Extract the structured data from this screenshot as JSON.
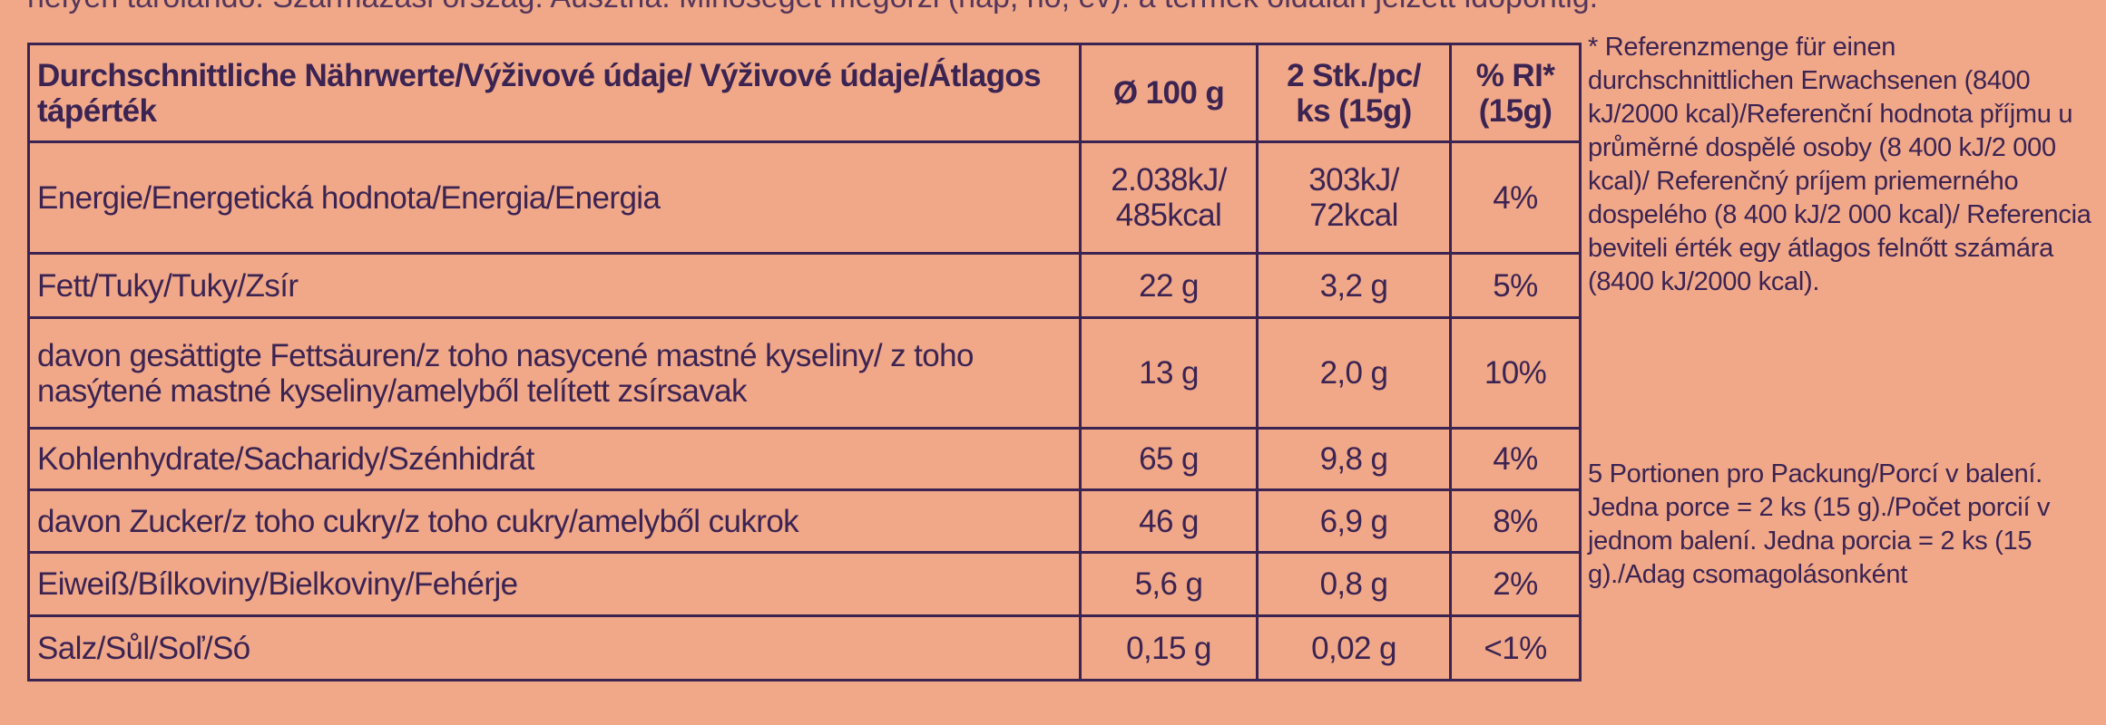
{
  "top_text": "helyen tárolandó. Származási ország: Ausztria. Minőségét megőrzi (nap, hó, év): a termék oldalán jelzett időpontig.",
  "table": {
    "headers": [
      "Durchschnittliche Nährwerte/Výživové údaje/ Výživové údaje/Átlagos tápérték",
      "Ø 100 g",
      "2 Stk./pc/ ks (15g)",
      "% RI* (15g)"
    ],
    "rows": [
      [
        "Energie/Energetická hodnota/Energia/Energia",
        "2.038kJ/ 485kcal",
        "303kJ/ 72kcal",
        "4%"
      ],
      [
        "Fett/Tuky/Tuky/Zsír",
        "22 g",
        "3,2 g",
        "5%"
      ],
      [
        "davon gesättigte Fettsäuren/z toho nasycené mastné kyseliny/ z toho nasýtené mastné kyseliny/amelyből telített zsírsavak",
        "13 g",
        "2,0 g",
        "10%"
      ],
      [
        "Kohlenhydrate/Sacharidy/Szénhidrát",
        "65 g",
        "9,8 g",
        "4%"
      ],
      [
        "davon Zucker/z toho cukry/z toho cukry/amelyből cukrok",
        "46 g",
        "6,9 g",
        "8%"
      ],
      [
        "Eiweiß/Bílkoviny/Bielkoviny/Fehérje",
        "5,6 g",
        "0,8 g",
        "2%"
      ],
      [
        "Salz/Sůl/Soľ/Só",
        "0,15 g",
        "0,02 g",
        "<1%"
      ]
    ]
  },
  "notes": {
    "reference": "* Referenzmenge für einen durchschnittlichen Erwachsenen (8400 kJ/2000 kcal)/Referenční hodnota příjmu u průměrné dospělé osoby (8 400 kJ/2 000 kcal)/ Referenčný príjem priemerného dospelého (8 400 kJ/2 000 kcal)/ Referencia beviteli érték egy átlagos felnőtt számára (8400 kJ/2000 kcal).",
    "portions": "5 Portionen pro Packung/Porcí v balení. Jedna porce = 2 ks (15 g)./Počet porcií v jednom balení. Jedna porcia = 2 ks (15 g)./Adag csomagolásonként"
  }
}
